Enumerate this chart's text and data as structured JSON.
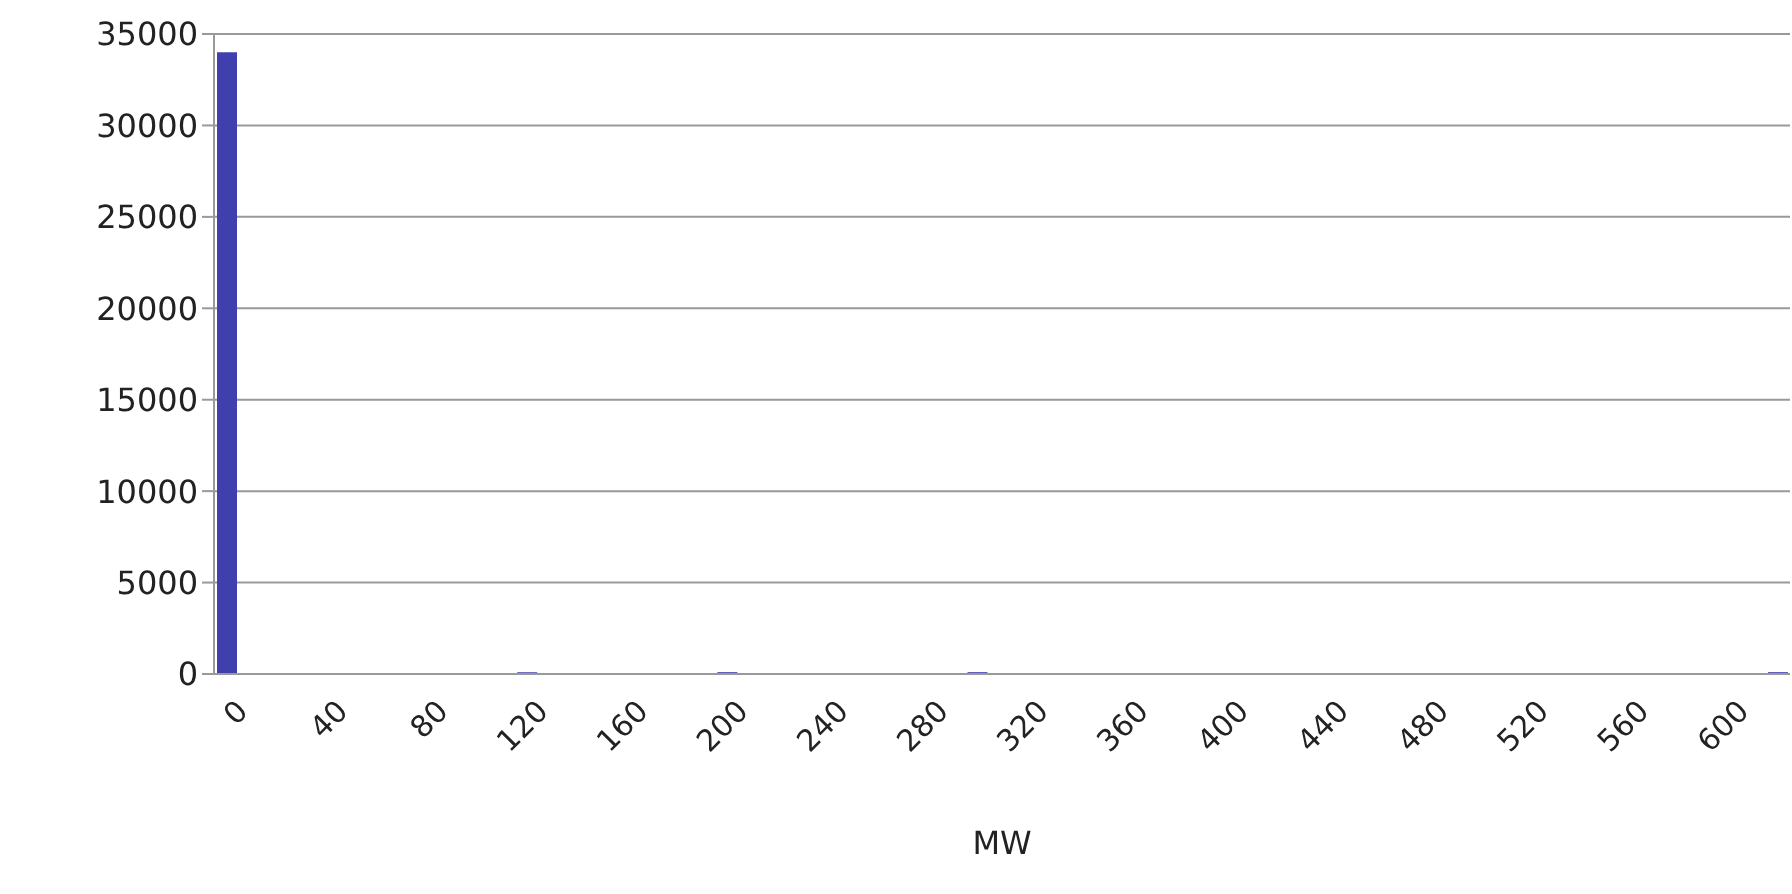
{
  "chart_data": {
    "type": "bar",
    "xlabel": "MW",
    "categories": [
      "0",
      null,
      null,
      null,
      "40",
      null,
      null,
      null,
      "80",
      null,
      null,
      null,
      "120",
      null,
      null,
      null,
      "160",
      null,
      null,
      null,
      "200",
      null,
      null,
      null,
      "240",
      null,
      null,
      null,
      "280",
      null,
      null,
      null,
      "320",
      null,
      null,
      null,
      "360",
      null,
      null,
      null,
      "400",
      null,
      null,
      null,
      "440",
      null,
      null,
      null,
      "480",
      null,
      null,
      null,
      "520",
      null,
      null,
      null,
      "560",
      null,
      null,
      null,
      "600",
      null,
      null
    ],
    "values": [
      34000,
      0,
      0,
      0,
      0,
      0,
      0,
      0,
      0,
      0,
      0,
      0,
      100,
      0,
      0,
      0,
      0,
      0,
      0,
      0,
      100,
      0,
      0,
      0,
      0,
      0,
      0,
      0,
      0,
      0,
      100,
      0,
      0,
      0,
      0,
      0,
      0,
      0,
      0,
      0,
      0,
      0,
      0,
      0,
      0,
      0,
      0,
      0,
      0,
      0,
      0,
      0,
      0,
      0,
      0,
      0,
      0,
      0,
      0,
      0,
      0,
      0,
      100
    ],
    "color": "#3f3fae",
    "ylim": [
      0,
      35000
    ],
    "yticks": [
      0,
      5000,
      10000,
      15000,
      20000,
      25000,
      30000,
      35000
    ],
    "grid": "y"
  }
}
